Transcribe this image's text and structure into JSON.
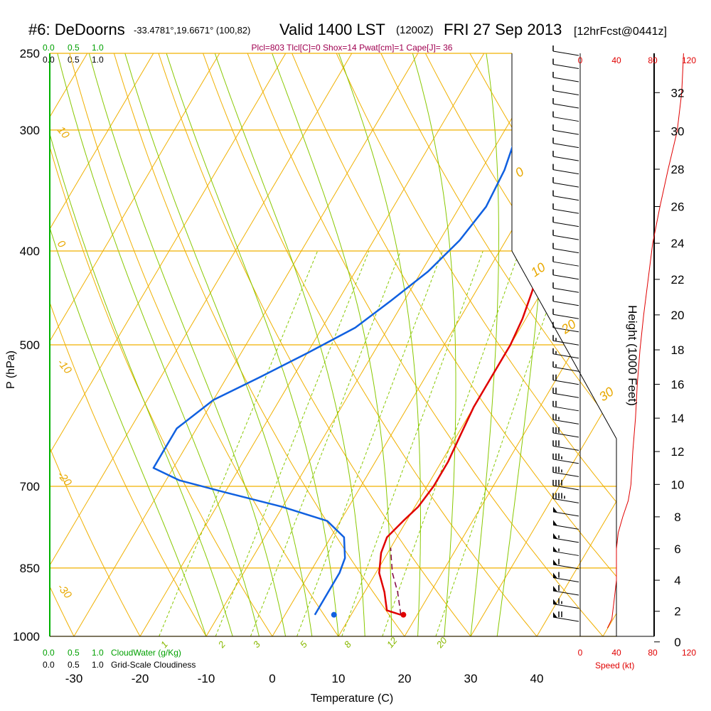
{
  "header": {
    "station": "#6: DeDoorns",
    "coords": "-33.4781°,19.6671° (100,82)",
    "valid": "Valid 1400 LST",
    "zulu": "(1200Z)",
    "date": "FRI 27 Sep 2013",
    "forecast": "[12hrFcst@0441z]",
    "indices": "Plcl=803 Tlcl[C]=0 Shox=14 Pwat[cm]=1 Cape[J]= 36"
  },
  "colors": {
    "temperature": "#e00000",
    "dewpoint": "#1060e0",
    "isotherm": "#f0b000",
    "dry_adiabat": "#f0b000",
    "moist_adiabat": "#88c800",
    "mixing_ratio": "#88c800",
    "cloudwater": "#00a000",
    "parcel": "#800040",
    "wind_speed": "#e00000",
    "indices_text": "#a00050"
  },
  "cloud_scales": {
    "top_green": [
      "0.0",
      "0.5",
      "1.0"
    ],
    "top_black": [
      "0.0",
      "0.5",
      "1.0"
    ],
    "bottom_green": [
      "0.0",
      "0.5",
      "1.0"
    ],
    "bottom_black": [
      "0.0",
      "0.5",
      "1.0"
    ],
    "cloudwater_label": "CloudWater (g/Kg)",
    "cloudiness_label": "Grid-Scale Cloudiness"
  },
  "speed_axis": {
    "label": "Speed (kt)",
    "ticks": [
      "0",
      "40",
      "80",
      "120"
    ]
  },
  "chart_data": {
    "type": "line",
    "xlabel": "Temperature (C)",
    "ylabel": "P (hPa)",
    "y2label": "Height (1000 Feet)",
    "pressure_ticks": [
      250,
      300,
      400,
      500,
      700,
      850,
      1000
    ],
    "temp_ticks": [
      -30,
      -20,
      -10,
      0,
      10,
      20,
      30,
      40
    ],
    "height_ticks": [
      0,
      2,
      4,
      6,
      8,
      10,
      12,
      14,
      16,
      18,
      20,
      22,
      24,
      26,
      28,
      30,
      32
    ],
    "isotherm_labels": [
      "10",
      "0",
      "-10",
      "-20",
      "-30"
    ],
    "dry_adiabat_labels": [
      "0",
      "10",
      "20",
      "30"
    ],
    "mixing_ratio_labels": [
      "1",
      "2",
      "3",
      "5",
      "8",
      "12",
      "20"
    ],
    "series": [
      {
        "name": "Temperature",
        "points": [
          [
            17.5,
            950
          ],
          [
            15,
            940
          ],
          [
            13,
            900
          ],
          [
            10.5,
            860
          ],
          [
            9,
            820
          ],
          [
            8.5,
            790
          ],
          [
            9.5,
            760
          ],
          [
            10.5,
            735
          ],
          [
            11,
            700
          ],
          [
            11,
            660
          ],
          [
            10.5,
            620
          ],
          [
            10,
            580
          ],
          [
            10,
            540
          ],
          [
            10,
            500
          ],
          [
            9.5,
            470
          ],
          [
            8.5,
            440
          ],
          [
            7,
            410
          ],
          [
            5,
            380
          ],
          [
            2.5,
            350
          ],
          [
            0,
            320
          ],
          [
            -2.5,
            290
          ],
          [
            -4.5,
            265
          ],
          [
            -6,
            250
          ]
        ]
      },
      {
        "name": "Dewpoint",
        "points": [
          [
            4.5,
            950
          ],
          [
            4.5,
            900
          ],
          [
            4.5,
            860
          ],
          [
            4,
            830
          ],
          [
            2,
            790
          ],
          [
            -2,
            760
          ],
          [
            -10,
            735
          ],
          [
            -20,
            710
          ],
          [
            -28,
            690
          ],
          [
            -33,
            670
          ],
          [
            -33,
            650
          ],
          [
            -33,
            610
          ],
          [
            -30,
            570
          ],
          [
            -25,
            540
          ],
          [
            -20,
            510
          ],
          [
            -15,
            480
          ],
          [
            -12,
            450
          ],
          [
            -9,
            420
          ],
          [
            -7,
            390
          ],
          [
            -6,
            360
          ],
          [
            -6.5,
            330
          ],
          [
            -8,
            300
          ],
          [
            -9,
            270
          ],
          [
            -10.5,
            250
          ]
        ]
      },
      {
        "name": "Parcel",
        "points": [
          [
            17.5,
            950
          ],
          [
            15,
            900
          ],
          [
            12.5,
            860
          ],
          [
            11,
            830
          ],
          [
            10,
            810
          ]
        ]
      }
    ],
    "surface_markers": [
      {
        "name": "Surface temperature",
        "value": 17.9,
        "pressure": 950
      },
      {
        "name": "Surface dewpoint",
        "value": 7.4,
        "pressure": 950
      }
    ],
    "wind_speed_profile": [
      [
        30,
        0.9
      ],
      [
        35,
        1.5
      ],
      [
        36,
        2
      ],
      [
        38,
        3
      ],
      [
        40,
        4
      ],
      [
        40,
        5
      ],
      [
        40,
        6
      ],
      [
        42,
        7
      ],
      [
        47,
        8
      ],
      [
        53,
        9
      ],
      [
        56,
        10
      ],
      [
        58,
        12
      ],
      [
        61,
        14
      ],
      [
        63,
        16
      ],
      [
        66,
        18
      ],
      [
        70,
        20
      ],
      [
        75,
        22
      ],
      [
        80,
        24
      ],
      [
        88,
        26
      ],
      [
        97,
        28
      ],
      [
        107,
        30
      ],
      [
        112,
        32
      ],
      [
        114,
        34
      ]
    ],
    "wind_barb_kt": [
      10,
      10,
      10,
      10,
      10,
      10,
      10,
      10,
      10,
      10,
      10,
      10,
      10,
      10,
      10,
      10,
      10,
      10,
      10,
      10,
      10,
      10,
      15,
      15,
      15,
      20,
      20,
      20,
      25,
      30,
      30,
      35,
      35,
      40,
      45,
      50,
      50,
      55,
      55,
      60,
      60,
      60,
      65,
      70
    ]
  }
}
